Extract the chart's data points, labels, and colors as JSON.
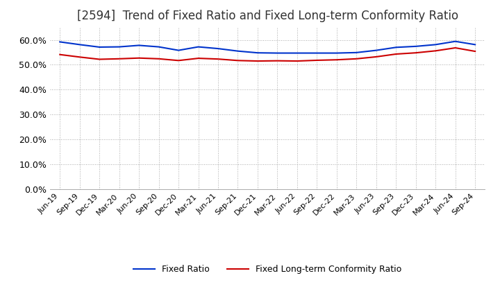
{
  "title": "[2594]  Trend of Fixed Ratio and Fixed Long-term Conformity Ratio",
  "title_color": "#333333",
  "title_fontsize": 12,
  "background_color": "#ffffff",
  "plot_bg_color": "#ffffff",
  "ylim": [
    0.0,
    0.65
  ],
  "yticks": [
    0.0,
    0.1,
    0.2,
    0.3,
    0.4,
    0.5,
    0.6
  ],
  "ytick_labels": [
    "0.0%",
    "10.0%",
    "20.0%",
    "30.0%",
    "40.0%",
    "50.0%",
    "60.0%"
  ],
  "x_labels": [
    "Jun-19",
    "Sep-19",
    "Dec-19",
    "Mar-20",
    "Jun-20",
    "Sep-20",
    "Dec-20",
    "Mar-21",
    "Jun-21",
    "Sep-21",
    "Dec-21",
    "Mar-22",
    "Jun-22",
    "Sep-22",
    "Dec-22",
    "Mar-23",
    "Jun-23",
    "Sep-23",
    "Dec-23",
    "Mar-24",
    "Jun-24",
    "Sep-24"
  ],
  "fixed_ratio": [
    0.592,
    0.581,
    0.571,
    0.572,
    0.578,
    0.572,
    0.558,
    0.572,
    0.565,
    0.555,
    0.548,
    0.547,
    0.547,
    0.547,
    0.547,
    0.549,
    0.558,
    0.57,
    0.574,
    0.581,
    0.594,
    0.581
  ],
  "fixed_lt_ratio": [
    0.541,
    0.531,
    0.522,
    0.524,
    0.527,
    0.524,
    0.517,
    0.526,
    0.523,
    0.517,
    0.515,
    0.516,
    0.515,
    0.518,
    0.52,
    0.524,
    0.532,
    0.543,
    0.548,
    0.556,
    0.568,
    0.554
  ],
  "line1_color": "#0033cc",
  "line2_color": "#cc0000",
  "line1_label": "Fixed Ratio",
  "line2_label": "Fixed Long-term Conformity Ratio",
  "line_width": 1.5,
  "grid_color": "#aaaaaa",
  "legend_fontsize": 9
}
